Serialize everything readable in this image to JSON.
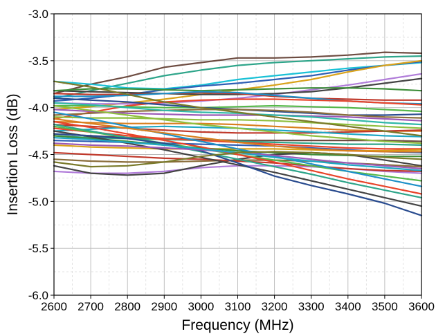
{
  "chart_data": {
    "type": "line",
    "title": "",
    "xlabel": "Frequency (MHz)",
    "ylabel": "Insertion Loss (dB)",
    "xlim": [
      2600,
      3600
    ],
    "ylim": [
      -6.0,
      -3.0
    ],
    "xticks": [
      2600,
      2700,
      2800,
      2900,
      3000,
      3100,
      3200,
      3300,
      3400,
      3500,
      3600
    ],
    "xtick_labels": [
      "2600",
      "2700",
      "2800",
      "2900",
      "3000",
      "3100",
      "3200",
      "3300",
      "3400",
      "3500",
      "3600"
    ],
    "yticks": [
      -3.0,
      -3.5,
      -4.0,
      -4.5,
      -5.0,
      -5.5,
      -6.0
    ],
    "ytick_labels": [
      "-3.0",
      "-3.5",
      "-4.0",
      "-4.5",
      "-5.0",
      "-5.5",
      "-6.0"
    ],
    "grid": "dashed, major and minor",
    "legend": "none",
    "x": [
      2600,
      2700,
      2800,
      2900,
      3000,
      3100,
      3200,
      3300,
      3400,
      3500,
      3600
    ],
    "series": [
      {
        "color": "#6d4c41",
        "values": [
          -3.85,
          -3.75,
          -3.67,
          -3.57,
          -3.52,
          -3.47,
          -3.47,
          -3.46,
          -3.44,
          -3.41,
          -3.42
        ]
      },
      {
        "color": "#2ea58a",
        "values": [
          -3.9,
          -3.82,
          -3.74,
          -3.66,
          -3.6,
          -3.55,
          -3.52,
          -3.5,
          -3.48,
          -3.46,
          -3.45
        ]
      },
      {
        "color": "#19c1d6",
        "values": [
          -3.72,
          -3.75,
          -3.79,
          -3.8,
          -3.76,
          -3.7,
          -3.66,
          -3.62,
          -3.58,
          -3.55,
          -3.52
        ]
      },
      {
        "color": "#2f5fb4",
        "values": [
          -3.93,
          -3.9,
          -3.86,
          -3.81,
          -3.77,
          -3.74,
          -3.7,
          -3.66,
          -3.6,
          -3.55,
          -3.51
        ]
      },
      {
        "color": "#d9a21a",
        "values": [
          -4.02,
          -3.99,
          -3.95,
          -3.91,
          -3.86,
          -3.81,
          -3.76,
          -3.7,
          -3.62,
          -3.55,
          -3.5
        ]
      },
      {
        "color": "#b07cd9",
        "values": [
          -3.95,
          -3.96,
          -3.96,
          -3.95,
          -3.93,
          -3.9,
          -3.86,
          -3.81,
          -3.76,
          -3.7,
          -3.64
        ]
      },
      {
        "color": "#444444",
        "values": [
          -3.82,
          -3.83,
          -3.84,
          -3.85,
          -3.86,
          -3.86,
          -3.85,
          -3.83,
          -3.79,
          -3.74,
          -3.69
        ]
      },
      {
        "color": "#3e8e3a",
        "values": [
          -3.82,
          -3.8,
          -3.8,
          -3.81,
          -3.82,
          -3.81,
          -3.8,
          -3.79,
          -3.79,
          -3.8,
          -3.82
        ]
      },
      {
        "color": "#c0392b",
        "values": [
          -3.85,
          -3.86,
          -3.86,
          -3.85,
          -3.84,
          -3.85,
          -3.88,
          -3.9,
          -3.91,
          -3.92,
          -3.92
        ]
      },
      {
        "color": "#1e90c8",
        "values": [
          -3.88,
          -3.88,
          -3.87,
          -3.85,
          -3.83,
          -3.84,
          -3.87,
          -3.9,
          -3.93,
          -3.95,
          -3.96
        ]
      },
      {
        "color": "#e8442a",
        "values": [
          -4.12,
          -4.05,
          -3.98,
          -3.94,
          -3.92,
          -3.91,
          -3.91,
          -3.92,
          -3.93,
          -3.95,
          -3.97
        ]
      },
      {
        "color": "#56b84b",
        "values": [
          -3.98,
          -3.98,
          -3.99,
          -4.0,
          -4.0,
          -3.99,
          -3.98,
          -3.99,
          -4.0,
          -4.02,
          -4.04
        ]
      },
      {
        "color": "#2a4c8f",
        "values": [
          -3.9,
          -3.92,
          -3.94,
          -3.97,
          -4.0,
          -4.02,
          -4.04,
          -4.06,
          -4.08,
          -4.08,
          -4.07
        ]
      },
      {
        "color": "#8a6d3b",
        "values": [
          -4.08,
          -4.06,
          -4.04,
          -4.03,
          -4.02,
          -4.02,
          -4.03,
          -4.05,
          -4.08,
          -4.1,
          -4.11
        ]
      },
      {
        "color": "#9b59b6",
        "values": [
          -4.02,
          -4.04,
          -4.06,
          -4.07,
          -4.08,
          -4.08,
          -4.08,
          -4.09,
          -4.1,
          -4.12,
          -4.14
        ]
      },
      {
        "color": "#2fb8a6",
        "values": [
          -3.95,
          -3.97,
          -4.0,
          -4.03,
          -4.05,
          -4.06,
          -4.08,
          -4.1,
          -4.13,
          -4.16,
          -4.18
        ]
      },
      {
        "color": "#8fbf3f",
        "values": [
          -4.1,
          -4.11,
          -4.11,
          -4.12,
          -4.13,
          -4.13,
          -4.14,
          -4.16,
          -4.18,
          -4.2,
          -4.22
        ]
      },
      {
        "color": "#d97f1f",
        "values": [
          -4.15,
          -4.16,
          -4.17,
          -4.17,
          -4.17,
          -4.18,
          -4.2,
          -4.22,
          -4.24,
          -4.25,
          -4.25
        ]
      },
      {
        "color": "#c0392b",
        "values": [
          -4.18,
          -4.2,
          -4.22,
          -4.24,
          -4.26,
          -4.27,
          -4.27,
          -4.27,
          -4.26,
          -4.25,
          -4.24
        ]
      },
      {
        "color": "#1fa7c4",
        "values": [
          -4.25,
          -4.23,
          -4.21,
          -4.2,
          -4.21,
          -4.22,
          -4.24,
          -4.26,
          -4.28,
          -4.3,
          -4.31
        ]
      },
      {
        "color": "#7a7a2a",
        "values": [
          -3.72,
          -3.78,
          -3.86,
          -3.94,
          -4.0,
          -4.05,
          -4.1,
          -4.15,
          -4.2,
          -4.25,
          -4.3
        ]
      },
      {
        "color": "#6d4c41",
        "values": [
          -4.28,
          -4.3,
          -4.32,
          -4.33,
          -4.34,
          -4.35,
          -4.35,
          -4.35,
          -4.35,
          -4.35,
          -4.36
        ]
      },
      {
        "color": "#2ea58a",
        "values": [
          -4.3,
          -4.32,
          -4.33,
          -4.34,
          -4.35,
          -4.36,
          -4.37,
          -4.38,
          -4.39,
          -4.39,
          -4.4
        ]
      },
      {
        "color": "#e8442a",
        "values": [
          -4.22,
          -4.26,
          -4.3,
          -4.33,
          -4.35,
          -4.37,
          -4.39,
          -4.41,
          -4.43,
          -4.44,
          -4.44
        ]
      },
      {
        "color": "#2f5fb4",
        "values": [
          -4.35,
          -4.36,
          -4.37,
          -4.38,
          -4.39,
          -4.4,
          -4.41,
          -4.43,
          -4.45,
          -4.47,
          -4.48
        ]
      },
      {
        "color": "#d9a21a",
        "values": [
          -4.4,
          -4.42,
          -4.43,
          -4.44,
          -4.44,
          -4.44,
          -4.44,
          -4.45,
          -4.46,
          -4.46,
          -4.45
        ]
      },
      {
        "color": "#3e8e3a",
        "values": [
          -4.3,
          -4.33,
          -4.36,
          -4.4,
          -4.43,
          -4.46,
          -4.48,
          -4.5,
          -4.51,
          -4.52,
          -4.52
        ]
      },
      {
        "color": "#b07cd9",
        "values": [
          -4.68,
          -4.7,
          -4.7,
          -4.68,
          -4.64,
          -4.62,
          -4.62,
          -4.63,
          -4.65,
          -4.68,
          -4.7
        ]
      },
      {
        "color": "#444444",
        "values": [
          -4.62,
          -4.7,
          -4.72,
          -4.7,
          -4.62,
          -4.55,
          -4.5,
          -4.48,
          -4.5,
          -4.56,
          -4.62
        ]
      },
      {
        "color": "#8a6d3b",
        "values": [
          -4.55,
          -4.57,
          -4.58,
          -4.58,
          -4.57,
          -4.56,
          -4.56,
          -4.57,
          -4.59,
          -4.61,
          -4.63
        ]
      },
      {
        "color": "#c0392b",
        "values": [
          -4.48,
          -4.5,
          -4.52,
          -4.54,
          -4.55,
          -4.57,
          -4.59,
          -4.62,
          -4.65,
          -4.67,
          -4.68
        ]
      },
      {
        "color": "#56b84b",
        "values": [
          -4.2,
          -4.26,
          -4.32,
          -4.38,
          -4.44,
          -4.5,
          -4.56,
          -4.62,
          -4.68,
          -4.73,
          -4.78
        ]
      },
      {
        "color": "#1e90c8",
        "values": [
          -4.05,
          -4.12,
          -4.2,
          -4.28,
          -4.36,
          -4.44,
          -4.52,
          -4.6,
          -4.68,
          -4.76,
          -4.84
        ]
      },
      {
        "color": "#e8442a",
        "values": [
          -4.15,
          -4.21,
          -4.28,
          -4.35,
          -4.42,
          -4.5,
          -4.58,
          -4.67,
          -4.76,
          -4.84,
          -4.92
        ]
      },
      {
        "color": "#2ea58a",
        "values": [
          -4.18,
          -4.25,
          -4.32,
          -4.39,
          -4.47,
          -4.55,
          -4.63,
          -4.71,
          -4.8,
          -4.88,
          -4.96
        ]
      },
      {
        "color": "#444444",
        "values": [
          -4.25,
          -4.31,
          -4.38,
          -4.45,
          -4.53,
          -4.61,
          -4.69,
          -4.78,
          -4.87,
          -4.96,
          -5.05
        ]
      },
      {
        "color": "#2a4c8f",
        "values": [
          -4.28,
          -4.3,
          -4.33,
          -4.38,
          -4.46,
          -4.59,
          -4.73,
          -4.83,
          -4.92,
          -5.02,
          -5.15
        ]
      },
      {
        "color": "#d97f1f",
        "values": [
          -4.12,
          -4.17,
          -4.22,
          -4.27,
          -4.32,
          -4.37,
          -4.41,
          -4.44,
          -4.46,
          -4.47,
          -4.47
        ]
      },
      {
        "color": "#8fbf3f",
        "values": [
          -3.98,
          -4.03,
          -4.08,
          -4.13,
          -4.18,
          -4.22,
          -4.26,
          -4.3,
          -4.33,
          -4.36,
          -4.38
        ]
      },
      {
        "color": "#9b59b6",
        "values": [
          -4.38,
          -4.4,
          -4.41,
          -4.43,
          -4.45,
          -4.48,
          -4.51,
          -4.55,
          -4.59,
          -4.62,
          -4.65
        ]
      },
      {
        "color": "#1fa7c4",
        "values": [
          -4.32,
          -4.34,
          -4.37,
          -4.4,
          -4.44,
          -4.48,
          -4.53,
          -4.57,
          -4.61,
          -4.64,
          -4.67
        ]
      },
      {
        "color": "#7a7a2a",
        "values": [
          -4.58,
          -4.63,
          -4.62,
          -4.58,
          -4.52,
          -4.48,
          -4.47,
          -4.48,
          -4.5,
          -4.53,
          -4.55
        ]
      }
    ]
  }
}
